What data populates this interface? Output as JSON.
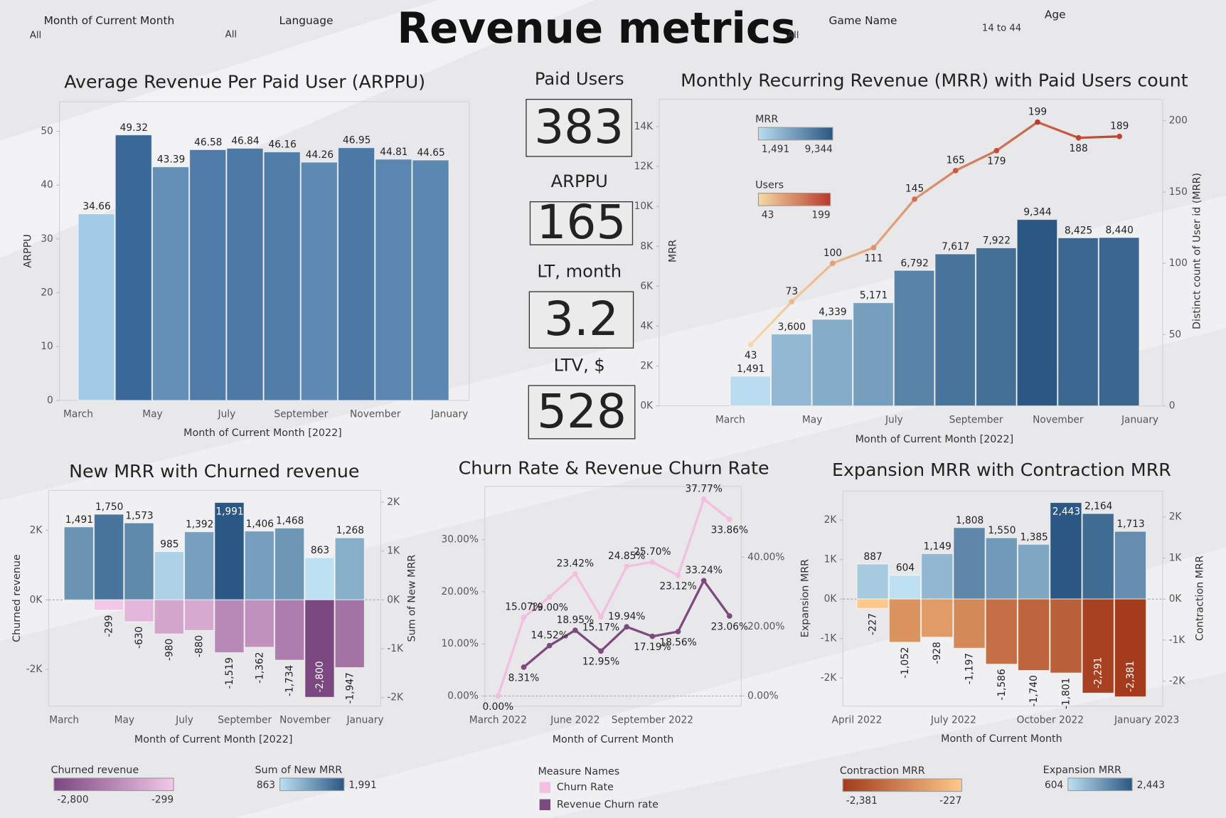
{
  "header": {
    "title": "Revenue metrics",
    "filters": [
      {
        "label": "Month of Current Month",
        "value": "All"
      },
      {
        "label": "Language",
        "value": "All"
      },
      {
        "label": "Game Name",
        "value": "All"
      },
      {
        "label": "Age",
        "value": "14 to 44"
      }
    ]
  },
  "kpis": [
    {
      "label": "Paid Users",
      "value": 383
    },
    {
      "label": "ARPPU",
      "value": 165
    },
    {
      "label": "LT, month",
      "value": 3.2
    },
    {
      "label": "LTV, $",
      "value": 528
    }
  ],
  "chart_data": [
    {
      "type": "bar",
      "title": "Average Revenue Per Paid User (ARPPU)",
      "x_label": "Month of Current Month [2022]",
      "y_label": "ARPPU",
      "categories": [
        "March",
        null,
        "May",
        null,
        "July",
        null,
        "September",
        null,
        "November",
        null,
        "January"
      ],
      "series": [
        {
          "values": [
            34.66,
            49.32,
            43.39,
            46.58,
            46.84,
            46.16,
            44.26,
            46.95,
            44.81,
            44.65,
            null
          ],
          "colors": [
            "#a3cbe8",
            "#3a6898"
          ]
        }
      ],
      "ylim": [
        0,
        55.5
      ],
      "yticks": [
        0,
        10,
        20,
        30,
        40,
        50
      ]
    },
    {
      "type": "bar",
      "title": "Monthly Recurring Revenue (MRR) with Paid Users count",
      "x_label": "Month of Current Month [2022]",
      "y_label": "MRR",
      "y2_label": "Distinct count of User id (MRR)",
      "categories": [
        "March",
        null,
        "May",
        null,
        "July",
        null,
        "September",
        null,
        "November",
        null,
        "January"
      ],
      "series": [
        {
          "name": "MRR",
          "values": [
            1491,
            3600,
            4339,
            5171,
            6792,
            7617,
            7922,
            9344,
            8425,
            8440,
            null
          ],
          "value_labels": [
            "1,491",
            "3,600",
            "4,339",
            "5,171",
            "6,792",
            "7,617",
            "7,922",
            "9,344",
            "8,425",
            "8,440",
            null
          ],
          "scale": {
            "min": {
              "value": 1491,
              "label": "1,491"
            },
            "max": {
              "value": 9344,
              "label": "9,344"
            },
            "colors": [
              "#b9dcf0",
              "#2a5783"
            ]
          }
        },
        {
          "name": "Users",
          "type": "line",
          "axis": "y2",
          "values": [
            43,
            73,
            100,
            111,
            145,
            165,
            179,
            199,
            188,
            189,
            null
          ],
          "scale": {
            "min": 43,
            "max": 199,
            "colors": [
              "#f6d9a6",
              "#b83a2a"
            ]
          }
        }
      ],
      "ylim": [
        0,
        15370
      ],
      "yticks": [
        {
          "value": 0,
          "label": "0K"
        },
        {
          "value": 2000,
          "label": "2K"
        },
        {
          "value": 4000,
          "label": "4K"
        },
        {
          "value": 6000,
          "label": "6K"
        },
        {
          "value": 8000,
          "label": "8K"
        },
        {
          "value": 10000,
          "label": "10K"
        },
        {
          "value": 12000,
          "label": "12K"
        },
        {
          "value": 14000,
          "label": "14K"
        }
      ],
      "y2lim": [
        0,
        215
      ],
      "y2ticks": [
        0,
        50,
        100,
        150,
        200
      ]
    },
    {
      "type": "bar",
      "title": "New MRR with Churned revenue",
      "x_label": "Month of Current Month [2022]",
      "y_label": "Churned revenue",
      "y2_label": "Sum of New MRR",
      "categories": [
        "March",
        null,
        "May",
        null,
        "July",
        null,
        "September",
        null,
        "November",
        null,
        "January"
      ],
      "series": [
        {
          "name": "Sum of New MRR",
          "axis": "y2",
          "values": [
            1491,
            1750,
            1573,
            985,
            1392,
            1991,
            1406,
            1468,
            863,
            1268,
            null
          ],
          "value_labels": [
            "1,491",
            "1,750",
            "1,573",
            "985",
            "1,392",
            "1,991",
            "1,406",
            "1,468",
            "863",
            "1,268",
            null
          ],
          "scale": {
            "min": 863,
            "max": {
              "value": 1991,
              "label": "1,991"
            },
            "colors": [
              "#bde0f2",
              "#2a5783"
            ]
          }
        },
        {
          "name": "Churned revenue",
          "values": [
            null,
            -299,
            -630,
            -980,
            -880,
            -1519,
            -1362,
            -1734,
            -2800,
            -1947,
            null
          ],
          "value_labels": [
            null,
            "-299",
            "-630",
            "-980",
            "-880",
            "-1,519",
            "-1,362",
            "-1,734",
            "-2,800",
            "-1,947",
            null
          ],
          "scale": {
            "min": {
              "value": -2800,
              "label": "-2,800"
            },
            "max": -299,
            "colors": [
              "#7a4781",
              "#f2c8e8"
            ]
          }
        }
      ],
      "ylim": [
        -3056,
        3146
      ],
      "yticks": [
        {
          "value": -2000,
          "label": "-2K"
        },
        {
          "value": 0,
          "label": "0K"
        },
        {
          "value": 2000,
          "label": "2K"
        }
      ],
      "y2lim": [
        -2176,
        2240
      ],
      "y2ticks": [
        {
          "value": -2000,
          "label": "-2K"
        },
        {
          "value": -1000,
          "label": "-1K"
        },
        {
          "value": 0,
          "label": "0K"
        },
        {
          "value": 1000,
          "label": "1K"
        },
        {
          "value": 2000,
          "label": "2K"
        }
      ]
    },
    {
      "type": "line",
      "title": "Churn Rate & Revenue Churn Rate",
      "x_label": "Month of Current Month",
      "legend_title": "Measure Names",
      "categories": [
        "March 2022",
        null,
        null,
        "June 2022",
        null,
        null,
        "September 2022",
        null,
        null,
        null
      ],
      "series": [
        {
          "name": "Churn Rate",
          "color": "#f2bfe0",
          "values": [
            0,
            15.07,
            19.0,
            23.42,
            15.17,
            24.85,
            25.7,
            23.12,
            37.77,
            33.86
          ],
          "value_labels": [
            "0.00%",
            "15.07%",
            "19.00%",
            "23.42%",
            "15.17%",
            "24.85%",
            "25.70%",
            "23.12%",
            "37.77%",
            "33.86%"
          ]
        },
        {
          "name": "Revenue Churn rate",
          "color": "#7b4a7f",
          "axis": "y2",
          "values": [
            null,
            8.31,
            14.52,
            18.95,
            12.95,
            19.94,
            17.19,
            18.56,
            33.24,
            23.06
          ],
          "value_labels": [
            null,
            "8.31%",
            "14.52%",
            "18.95%",
            "12.95%",
            "19.94%",
            "17.19%",
            "18.56%",
            "33.24%",
            "23.06%"
          ]
        }
      ],
      "ylim": [
        -1.95,
        40.2
      ],
      "yticks": [
        {
          "value": 0,
          "label": "0.00%"
        },
        {
          "value": 10,
          "label": "10.00%"
        },
        {
          "value": 20,
          "label": "20.00%"
        },
        {
          "value": 30,
          "label": "30.00%"
        }
      ],
      "y2lim": [
        -2.93,
        60.4
      ],
      "y2ticks": [
        {
          "value": 0,
          "label": "0.00%"
        },
        {
          "value": 20,
          "label": "20.00%"
        },
        {
          "value": 40,
          "label": "40.00%"
        }
      ]
    },
    {
      "type": "bar",
      "title": "Expansion MRR with Contraction MRR",
      "x_label": "Month of Current Month",
      "y_label": "Expansion MRR",
      "y2_label": "Contraction MRR",
      "categories": [
        "April 2022",
        null,
        null,
        "July 2022",
        null,
        null,
        "October 2022",
        null,
        null,
        "January 2023"
      ],
      "series": [
        {
          "name": "Expansion MRR",
          "values": [
            887,
            604,
            1149,
            1808,
            1550,
            1385,
            2443,
            2164,
            1713,
            null
          ],
          "value_labels": [
            "887",
            "604",
            "1,149",
            "1,808",
            "1,550",
            "1,385",
            "2,443",
            "2,164",
            "1,713",
            null
          ],
          "scale": {
            "min": 604,
            "max": {
              "value": 2443,
              "label": "2,443"
            },
            "colors": [
              "#bde0f2",
              "#2a5783"
            ]
          }
        },
        {
          "name": "Contraction MRR",
          "axis": "y2",
          "values": [
            -227,
            -1052,
            -928,
            -1197,
            -1586,
            -1740,
            -1801,
            -2291,
            -2381,
            null
          ],
          "value_labels": [
            "-227",
            "-1,052",
            "-928",
            "-1,197",
            "-1,586",
            "-1,740",
            "-1,801",
            "-2,291",
            "-2,381",
            null
          ],
          "scale": {
            "min": {
              "value": -2381,
              "label": "-2,381"
            },
            "max": -227,
            "colors": [
              "#a33b1c",
              "#fdc98a"
            ]
          }
        }
      ],
      "ylim": [
        -2713,
        2733
      ],
      "yticks": [
        {
          "value": -2000,
          "label": "-2K"
        },
        {
          "value": -1000,
          "label": "-1K"
        },
        {
          "value": 0,
          "label": "0K"
        },
        {
          "value": 1000,
          "label": "1K"
        },
        {
          "value": 2000,
          "label": "2K"
        }
      ],
      "y2lim": [
        -2610,
        2629
      ],
      "y2ticks": [
        {
          "value": -2000,
          "label": "-2K"
        },
        {
          "value": -1000,
          "label": "-1K"
        },
        {
          "value": 0,
          "label": "0K"
        },
        {
          "value": 1000,
          "label": "1K"
        },
        {
          "value": 2000,
          "label": "2K"
        }
      ]
    }
  ]
}
